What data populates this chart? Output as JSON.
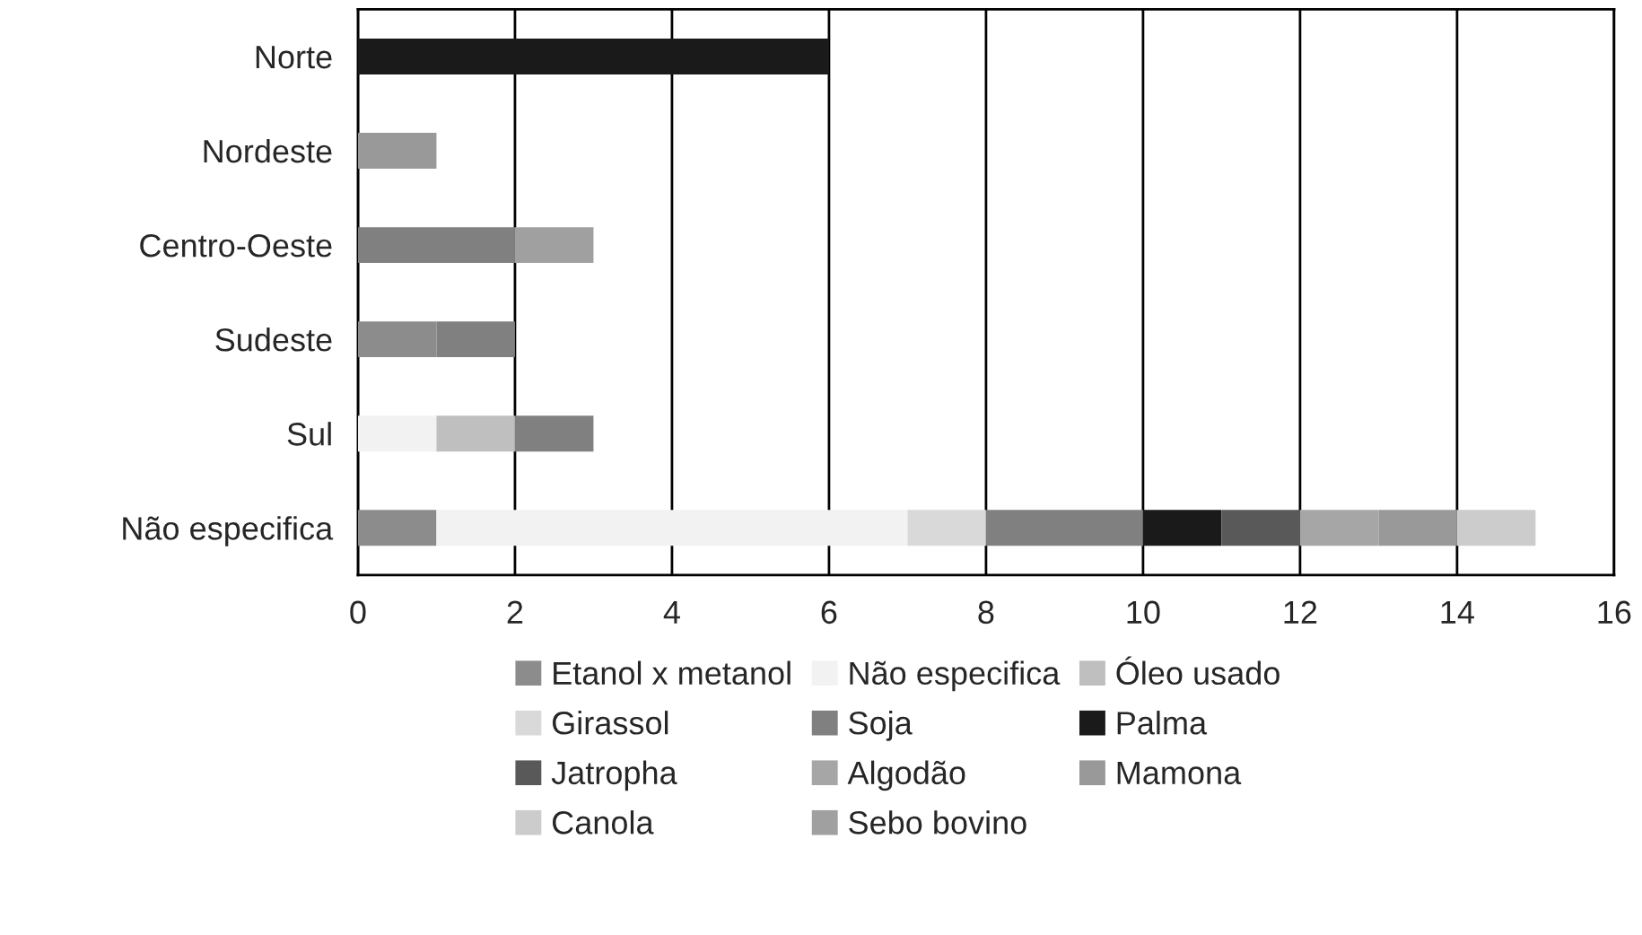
{
  "chart_data": {
    "type": "bar",
    "orientation": "horizontal",
    "stacked": true,
    "categories": [
      "Norte",
      "Nordeste",
      "Centro-Oeste",
      "Sudeste",
      "Sul",
      "Não especifica"
    ],
    "series": [
      {
        "name": "Etanol x metanol",
        "color": "#8c8c8c",
        "values": [
          0,
          0,
          0,
          1,
          0,
          1
        ]
      },
      {
        "name": "Não especifica",
        "color": "#f2f2f2",
        "values": [
          0,
          0,
          0,
          0,
          1,
          6
        ]
      },
      {
        "name": "Óleo usado",
        "color": "#bfbfbf",
        "values": [
          0,
          0,
          0,
          0,
          1,
          0
        ]
      },
      {
        "name": "Girassol",
        "color": "#d9d9d9",
        "values": [
          0,
          0,
          0,
          0,
          0,
          1
        ]
      },
      {
        "name": "Soja",
        "color": "#808080",
        "values": [
          0,
          0,
          2,
          1,
          1,
          2
        ]
      },
      {
        "name": "Palma",
        "color": "#1a1a1a",
        "values": [
          6,
          0,
          0,
          0,
          0,
          1
        ]
      },
      {
        "name": "Jatropha",
        "color": "#595959",
        "values": [
          0,
          0,
          0,
          0,
          0,
          1
        ]
      },
      {
        "name": "Algodão",
        "color": "#a6a6a6",
        "values": [
          0,
          0,
          0,
          0,
          0,
          1
        ]
      },
      {
        "name": "Mamona",
        "color": "#999999",
        "values": [
          0,
          1,
          0,
          0,
          0,
          1
        ]
      },
      {
        "name": "Canola",
        "color": "#cccccc",
        "values": [
          0,
          0,
          0,
          0,
          0,
          1
        ]
      },
      {
        "name": "Sebo bovino",
        "color": "#a0a0a0",
        "values": [
          0,
          0,
          1,
          0,
          0,
          0
        ]
      }
    ],
    "xlim": [
      0,
      16
    ],
    "xticks": [
      0,
      2,
      4,
      6,
      8,
      10,
      12,
      14,
      16
    ],
    "grid": "x",
    "legend": "bottom"
  }
}
